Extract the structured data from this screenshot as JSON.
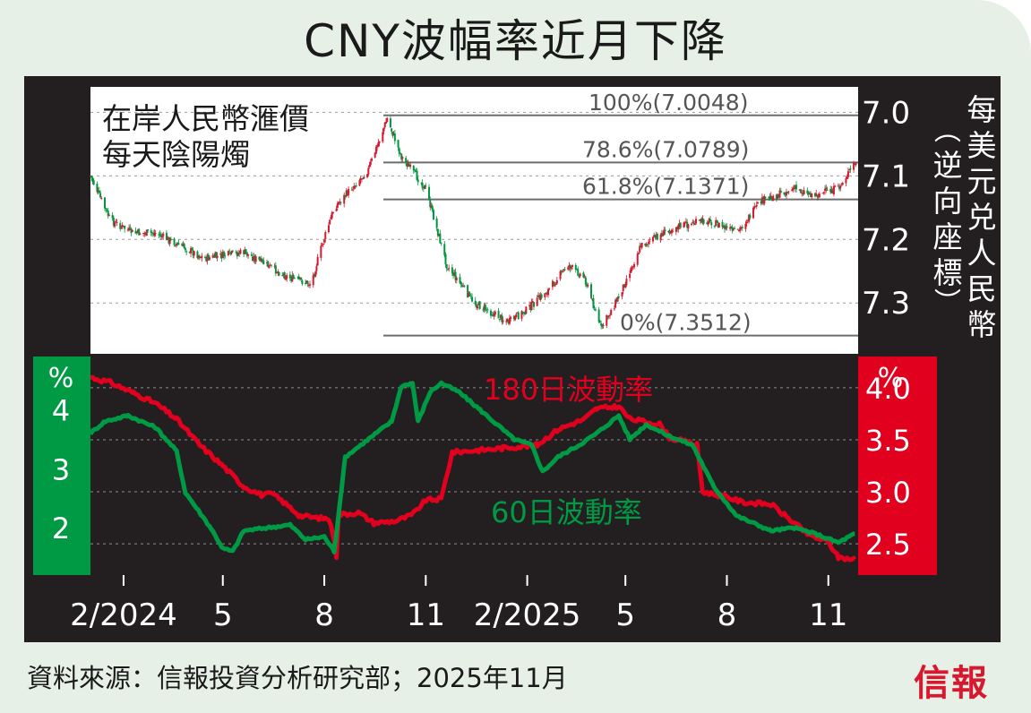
{
  "title": "CNY波幅率近月下降",
  "source": "資料來源：信報投資分析研究部；2025年11月",
  "logo_text": "信報",
  "colors": {
    "up": "#d7192f",
    "down": "#009640",
    "vol180": "#e1001e",
    "vol60": "#009a44",
    "panel": "#231f20",
    "left_axis_bg": "#009a44",
    "right_axis_bg": "#e1001e"
  },
  "chart_data": [
    {
      "type": "candlestick",
      "title_lines": [
        "在岸人民幣滙價",
        "每天陰陽燭"
      ],
      "right_axis_label_lines": [
        "每美元兑人民幣",
        "(逆向座標)"
      ],
      "y_inverted": true,
      "ylim": [
        6.96,
        7.38
      ],
      "y_ticks": [
        7.0,
        7.1,
        7.2,
        7.3
      ],
      "y_tick_labels": [
        "7.0",
        "7.1",
        "7.2",
        "7.3"
      ],
      "fib_levels": [
        {
          "label": "100%(7.0048)",
          "value": 7.0048
        },
        {
          "label": "78.6%(7.0789)",
          "value": 7.0789
        },
        {
          "label": "61.8%(7.1371)",
          "value": 7.1371
        },
        {
          "label": "0%(7.3512)",
          "value": 7.3512
        }
      ],
      "anchors": [
        {
          "date": "2024-01-02",
          "close": 7.1
        },
        {
          "date": "2024-01-20",
          "close": 7.17
        },
        {
          "date": "2024-02-10",
          "close": 7.19
        },
        {
          "date": "2024-03-01",
          "close": 7.19
        },
        {
          "date": "2024-04-15",
          "close": 7.23
        },
        {
          "date": "2024-05-20",
          "close": 7.22
        },
        {
          "date": "2024-06-30",
          "close": 7.26
        },
        {
          "date": "2024-07-20",
          "close": 7.27
        },
        {
          "date": "2024-07-28",
          "close": 7.22
        },
        {
          "date": "2024-08-10",
          "close": 7.15
        },
        {
          "date": "2024-09-10",
          "close": 7.09
        },
        {
          "date": "2024-09-27",
          "close": 7.01
        },
        {
          "date": "2024-10-10",
          "close": 7.07
        },
        {
          "date": "2024-11-01",
          "close": 7.12
        },
        {
          "date": "2024-11-20",
          "close": 7.24
        },
        {
          "date": "2024-12-15",
          "close": 7.3
        },
        {
          "date": "2025-01-15",
          "close": 7.33
        },
        {
          "date": "2025-02-01",
          "close": 7.31
        },
        {
          "date": "2025-02-20",
          "close": 7.28
        },
        {
          "date": "2025-03-10",
          "close": 7.24
        },
        {
          "date": "2025-03-25",
          "close": 7.26
        },
        {
          "date": "2025-04-09",
          "close": 7.34
        },
        {
          "date": "2025-04-25",
          "close": 7.29
        },
        {
          "date": "2025-05-15",
          "close": 7.21
        },
        {
          "date": "2025-06-15",
          "close": 7.18
        },
        {
          "date": "2025-07-15",
          "close": 7.17
        },
        {
          "date": "2025-08-10",
          "close": 7.19
        },
        {
          "date": "2025-09-01",
          "close": 7.14
        },
        {
          "date": "2025-10-01",
          "close": 7.12
        },
        {
          "date": "2025-10-20",
          "close": 7.13
        },
        {
          "date": "2025-11-10",
          "close": 7.12
        },
        {
          "date": "2025-11-25",
          "close": 7.08
        }
      ]
    },
    {
      "type": "line",
      "ylabel_left": "%",
      "ylabel_right": "%",
      "left_ylim": [
        1.2,
        4.9
      ],
      "left_ticks": [
        2,
        3,
        4
      ],
      "left_tick_labels": [
        "2",
        "3",
        "4"
      ],
      "right_ylim": [
        2.2,
        4.3
      ],
      "right_ticks": [
        2.5,
        3.0,
        3.5,
        4.0
      ],
      "right_tick_labels": [
        "2.5",
        "3.0",
        "3.5",
        "4.0"
      ],
      "x_ticks": [
        "2024-02-01",
        "2024-05-01",
        "2024-08-01",
        "2024-11-01",
        "2025-02-01",
        "2025-05-01",
        "2025-08-01",
        "2025-11-01"
      ],
      "x_tick_labels": [
        "2/2024",
        "5",
        "8",
        "11",
        "2/2025",
        "5",
        "8",
        "11"
      ],
      "series": [
        {
          "name": "180日波動率",
          "axis": "right",
          "points": [
            [
              "2024-01-02",
              4.1
            ],
            [
              "2024-01-20",
              4.05
            ],
            [
              "2024-02-10",
              3.95
            ],
            [
              "2024-03-01",
              3.85
            ],
            [
              "2024-03-20",
              3.7
            ],
            [
              "2024-04-10",
              3.45
            ],
            [
              "2024-05-01",
              3.25
            ],
            [
              "2024-05-20",
              3.05
            ],
            [
              "2024-06-05",
              2.97
            ],
            [
              "2024-06-15",
              2.98
            ],
            [
              "2024-06-25",
              2.9
            ],
            [
              "2024-07-10",
              2.77
            ],
            [
              "2024-07-25",
              2.75
            ],
            [
              "2024-08-05",
              2.74
            ],
            [
              "2024-08-10",
              2.55
            ],
            [
              "2024-08-12",
              2.38
            ],
            [
              "2024-08-14",
              2.78
            ],
            [
              "2024-09-01",
              2.8
            ],
            [
              "2024-09-15",
              2.7
            ],
            [
              "2024-10-05",
              2.72
            ],
            [
              "2024-10-20",
              2.78
            ],
            [
              "2024-11-01",
              2.92
            ],
            [
              "2024-11-15",
              2.93
            ],
            [
              "2024-11-25",
              3.38
            ],
            [
              "2024-12-20",
              3.4
            ],
            [
              "2025-01-10",
              3.42
            ],
            [
              "2025-02-10",
              3.45
            ],
            [
              "2025-03-01",
              3.6
            ],
            [
              "2025-03-25",
              3.7
            ],
            [
              "2025-04-05",
              3.8
            ],
            [
              "2025-04-25",
              3.82
            ],
            [
              "2025-05-05",
              3.7
            ],
            [
              "2025-06-01",
              3.65
            ],
            [
              "2025-06-10",
              3.52
            ],
            [
              "2025-07-05",
              3.45
            ],
            [
              "2025-07-10",
              3.0
            ],
            [
              "2025-08-01",
              2.95
            ],
            [
              "2025-08-15",
              2.9
            ],
            [
              "2025-09-10",
              2.88
            ],
            [
              "2025-10-01",
              2.7
            ],
            [
              "2025-10-15",
              2.58
            ],
            [
              "2025-11-01",
              2.52
            ],
            [
              "2025-11-10",
              2.37
            ],
            [
              "2025-11-25",
              2.35
            ]
          ]
        },
        {
          "name": "60日波動率",
          "axis": "left",
          "points": [
            [
              "2024-01-02",
              3.6
            ],
            [
              "2024-01-15",
              3.8
            ],
            [
              "2024-02-05",
              3.9
            ],
            [
              "2024-03-01",
              3.7
            ],
            [
              "2024-03-20",
              3.3
            ],
            [
              "2024-03-28",
              2.6
            ],
            [
              "2024-04-20",
              2.0
            ],
            [
              "2024-05-01",
              1.65
            ],
            [
              "2024-05-10",
              1.6
            ],
            [
              "2024-05-20",
              1.95
            ],
            [
              "2024-06-10",
              2.0
            ],
            [
              "2024-07-01",
              2.05
            ],
            [
              "2024-07-15",
              1.8
            ],
            [
              "2024-08-01",
              1.85
            ],
            [
              "2024-08-10",
              1.6
            ],
            [
              "2024-08-15",
              2.4
            ],
            [
              "2024-08-20",
              3.2
            ],
            [
              "2024-09-10",
              3.5
            ],
            [
              "2024-10-01",
              3.8
            ],
            [
              "2024-10-10",
              4.4
            ],
            [
              "2024-10-20",
              4.45
            ],
            [
              "2024-10-25",
              3.8
            ],
            [
              "2024-11-05",
              4.3
            ],
            [
              "2024-11-15",
              4.45
            ],
            [
              "2024-12-01",
              4.3
            ],
            [
              "2024-12-20",
              4.0
            ],
            [
              "2025-01-20",
              3.5
            ],
            [
              "2025-02-05",
              3.4
            ],
            [
              "2025-02-15",
              2.95
            ],
            [
              "2025-03-01",
              3.2
            ],
            [
              "2025-03-20",
              3.4
            ],
            [
              "2025-04-05",
              3.6
            ],
            [
              "2025-04-25",
              3.9
            ],
            [
              "2025-05-05",
              3.5
            ],
            [
              "2025-05-20",
              3.75
            ],
            [
              "2025-06-10",
              3.55
            ],
            [
              "2025-07-01",
              3.4
            ],
            [
              "2025-07-20",
              2.7
            ],
            [
              "2025-08-10",
              2.2
            ],
            [
              "2025-09-10",
              1.95
            ],
            [
              "2025-10-01",
              2.0
            ],
            [
              "2025-10-20",
              1.9
            ],
            [
              "2025-11-10",
              1.75
            ],
            [
              "2025-11-25",
              1.9
            ]
          ]
        }
      ]
    }
  ]
}
